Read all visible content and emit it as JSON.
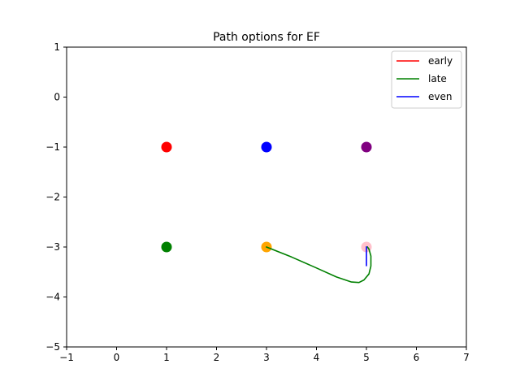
{
  "chart_data": {
    "type": "scatter",
    "title": "Path options for EF",
    "xlabel": "",
    "ylabel": "",
    "xlim": [
      -1,
      7
    ],
    "ylim": [
      -5,
      1
    ],
    "xticks": [
      -1,
      0,
      1,
      2,
      3,
      4,
      5,
      6,
      7
    ],
    "yticks": [
      -5,
      -4,
      -3,
      -2,
      -1,
      0,
      1
    ],
    "xtick_labels": [
      "−1",
      "0",
      "1",
      "2",
      "3",
      "4",
      "5",
      "6",
      "7"
    ],
    "ytick_labels": [
      "−5",
      "−4",
      "−3",
      "−2",
      "−1",
      "0",
      "1"
    ],
    "grid": false,
    "legend_position": "top-right",
    "points": [
      {
        "x": 1,
        "y": -1,
        "color": "#ff0000"
      },
      {
        "x": 3,
        "y": -1,
        "color": "#0000ff"
      },
      {
        "x": 5,
        "y": -1,
        "color": "#800080"
      },
      {
        "x": 1,
        "y": -3,
        "color": "#008000"
      },
      {
        "x": 3,
        "y": -3,
        "color": "#ffa500"
      },
      {
        "x": 5,
        "y": -3,
        "color": "#ffc0cb"
      }
    ],
    "series": [
      {
        "name": "early",
        "color": "#ff0000",
        "x": [],
        "y": []
      },
      {
        "name": "late",
        "color": "#008000",
        "x": [
          3.0,
          3.5,
          4.0,
          4.4,
          4.7,
          4.85,
          4.95,
          5.05,
          5.09,
          5.09,
          5.05,
          5.02
        ],
        "y": [
          -3.0,
          -3.2,
          -3.42,
          -3.6,
          -3.7,
          -3.71,
          -3.66,
          -3.54,
          -3.38,
          -3.18,
          -3.04,
          -3.0
        ]
      },
      {
        "name": "even",
        "color": "#0000ff",
        "x": [
          5.0,
          5.0
        ],
        "y": [
          -3.0,
          -3.37
        ]
      }
    ]
  }
}
